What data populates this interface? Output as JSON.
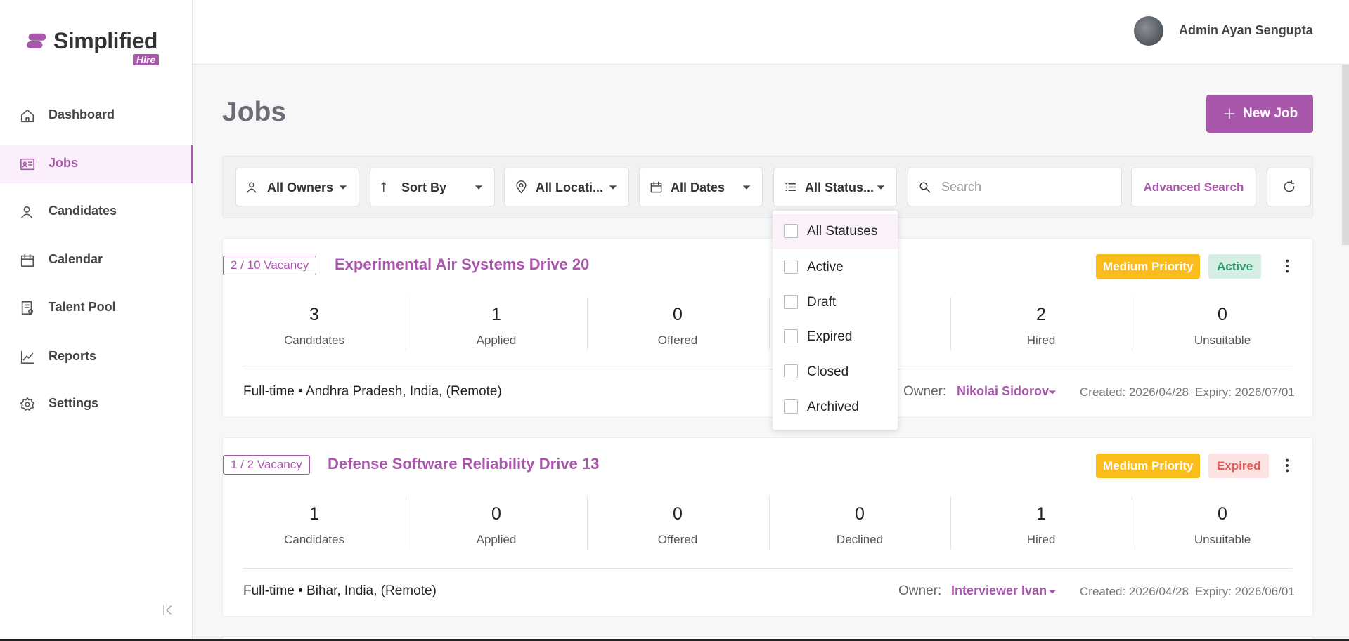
{
  "sidebar": {
    "logo": "Simplified",
    "logo_tag": "Hire",
    "nav": [
      "Dashboard",
      "Jobs",
      "Candidates",
      "Calendar",
      "Talent Pool",
      "Reports",
      "Settings"
    ],
    "active": 1
  },
  "header": {
    "user_name": "Admin Ayan Sengupta"
  },
  "page": {
    "title": "Jobs",
    "new_job": "New Job"
  },
  "filters": {
    "items": [
      "All Owners",
      "Sort By",
      "All Locati...",
      "All Dates",
      "All Status..."
    ],
    "search_placeholder": "Search",
    "advanced_search": "Advanced Search"
  },
  "status_dropdown": {
    "options": [
      "All Statuses",
      "Active",
      "Draft",
      "Expired",
      "Closed",
      "Archived"
    ]
  },
  "jobs": [
    {
      "vacancy": "2 / 10 Vacancy",
      "title": "Experimental Air Systems Drive 20",
      "priority": "Medium Priority",
      "status": "Active",
      "stats": [
        {
          "value": 3,
          "label": "Candidates"
        },
        {
          "value": 1,
          "label": "Applied"
        },
        {
          "value": 0,
          "label": "Offered"
        },
        null,
        {
          "value": 2,
          "label": "Hired"
        },
        {
          "value": 0,
          "label": "Unsuitable"
        }
      ],
      "meta": "Full-time • Andhra Pradesh, India, (Remote)",
      "owner_label": "Owner:",
      "owner": "Nikolai Sidorov",
      "created": "Created: 2026/04/28",
      "expiry": "Expiry: 2026/07/01"
    },
    {
      "vacancy": "1 / 2 Vacancy",
      "title": "Defense Software Reliability Drive 13",
      "priority": "Medium Priority",
      "status": "Expired",
      "stats": [
        {
          "value": 1,
          "label": "Candidates"
        },
        {
          "value": 0,
          "label": "Applied"
        },
        {
          "value": 0,
          "label": "Offered"
        },
        {
          "value": 0,
          "label": "Declined"
        },
        {
          "value": 1,
          "label": "Hired"
        },
        {
          "value": 0,
          "label": "Unsuitable"
        }
      ],
      "meta": "Full-time • Bihar, India, (Remote)",
      "owner_label": "Owner:",
      "owner": "Interviewer Ivan",
      "created": "Created: 2026/04/28",
      "expiry": "Expiry: 2026/06/01"
    }
  ]
}
